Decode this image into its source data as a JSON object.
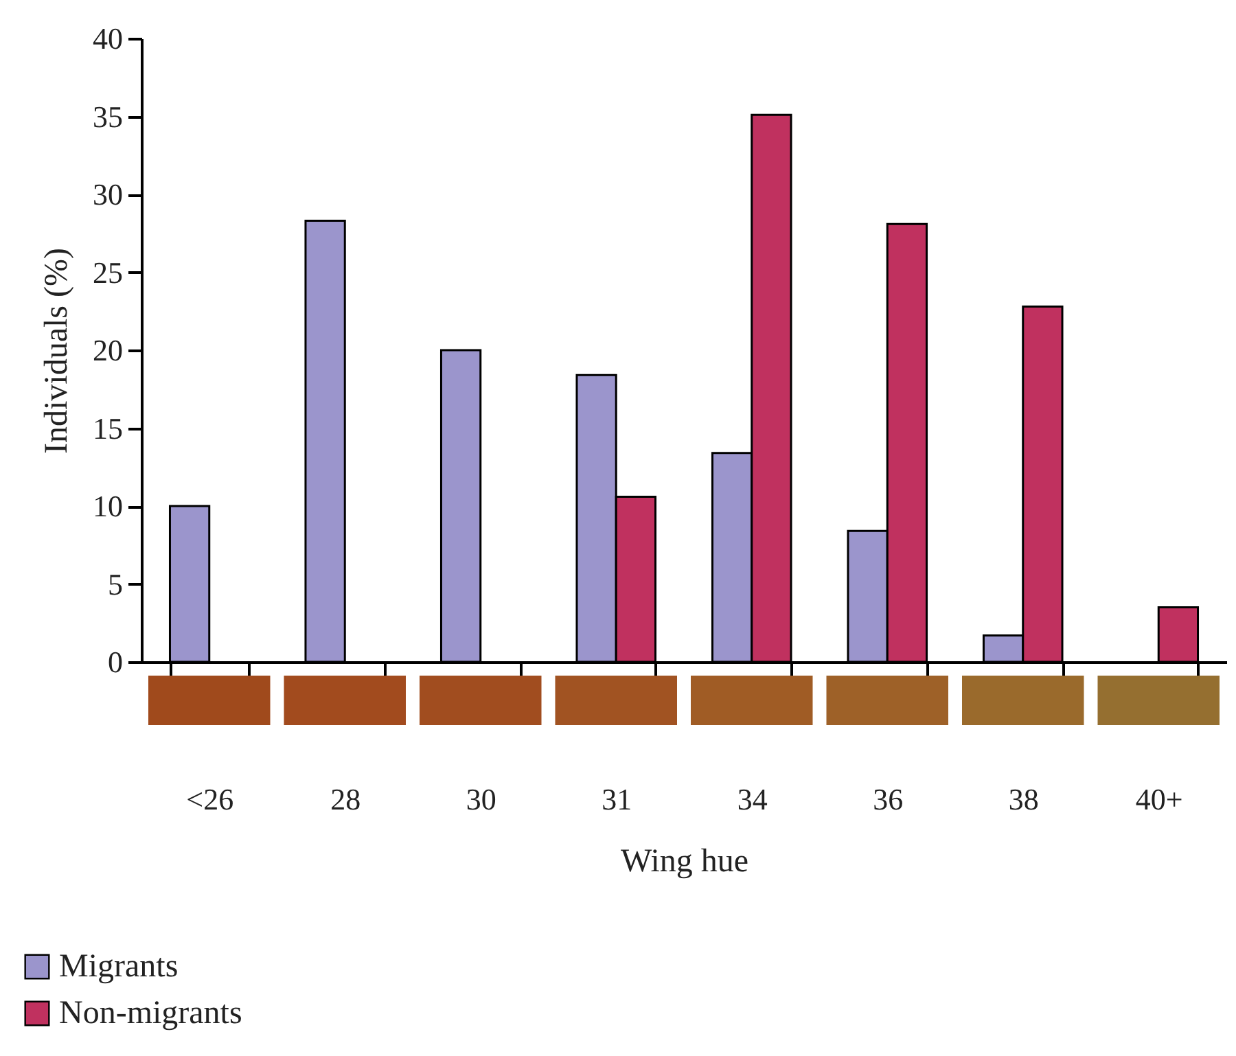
{
  "chart_data": {
    "type": "bar",
    "xlabel": "Wing hue",
    "ylabel": "Individuals (%)",
    "categories": [
      "<26",
      "28",
      "30",
      "31",
      "34",
      "36",
      "38",
      "40+"
    ],
    "series": [
      {
        "name": "Migrants",
        "color": "#9b95cc",
        "values": [
          10,
          28.3,
          20,
          18.4,
          13.4,
          8.4,
          1.7,
          null
        ]
      },
      {
        "name": "Non-migrants",
        "color": "#c0315f",
        "values": [
          null,
          null,
          null,
          10.6,
          35.1,
          28.1,
          22.8,
          3.5
        ]
      }
    ],
    "ylim": [
      0,
      40
    ],
    "yticks": [
      0,
      5,
      10,
      15,
      20,
      25,
      30,
      35,
      40
    ],
    "grid": false,
    "legend": "bottom left"
  }
}
